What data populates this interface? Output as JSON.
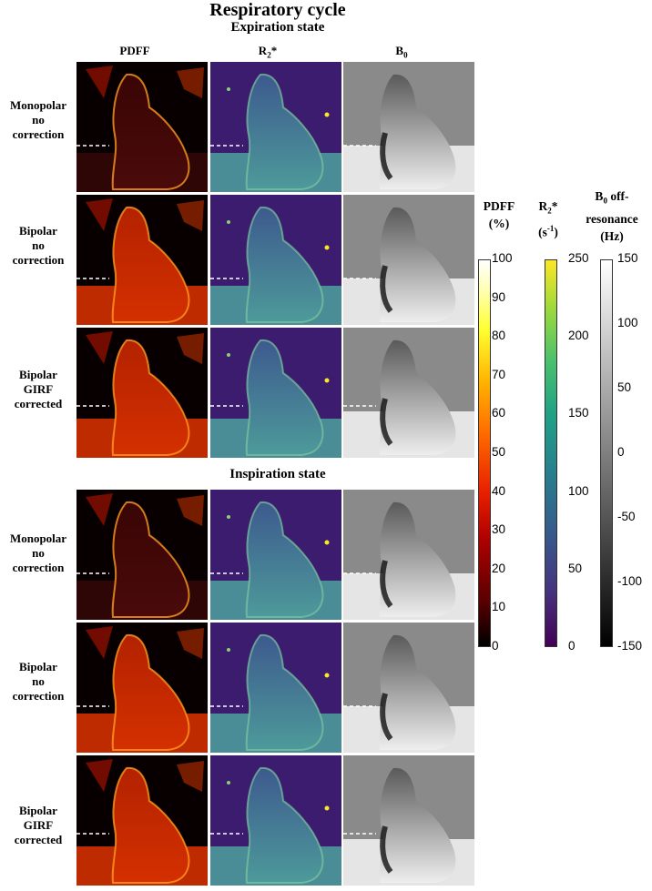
{
  "title": "Respiratory cycle",
  "states": [
    "Expiration state",
    "Inspiration state"
  ],
  "columns": {
    "pdff": "PDFF",
    "r2": "R",
    "r2_sub": "2",
    "r2_star": "*",
    "b0": "B",
    "b0_sub": "0"
  },
  "rows": [
    [
      "Monopolar",
      "no",
      "correction"
    ],
    [
      "Bipolar",
      "no",
      "correction"
    ],
    [
      "Bipolar",
      "GIRF",
      "corrected"
    ],
    [
      "Monopolar",
      "no",
      "correction"
    ],
    [
      "Bipolar",
      "no",
      "correction"
    ],
    [
      "Bipolar",
      "GIRF",
      "corrected"
    ]
  ],
  "colorbars": {
    "pdff": {
      "title1": "PDFF",
      "title2": "(%)",
      "ticks": [
        "100",
        "90",
        "80",
        "70",
        "60",
        "50",
        "40",
        "30",
        "20",
        "10",
        "0"
      ],
      "colormap": "hot",
      "range": [
        0,
        100
      ]
    },
    "r2": {
      "title_r": "R",
      "title_sub": "2",
      "title_star": "*",
      "unit_open": "(s",
      "unit_sup": "-1",
      "unit_close": ")",
      "ticks": [
        "250",
        "200",
        "150",
        "100",
        "50",
        "0"
      ],
      "colormap": "viridis",
      "range": [
        0,
        250
      ]
    },
    "b0": {
      "title1": "B",
      "title_sub": "0",
      "title1b": " off-",
      "title2": "resonance",
      "title3": "(Hz)",
      "ticks": [
        "150",
        "100",
        "50",
        "0",
        "-50",
        "-100",
        "-150"
      ],
      "colormap": "gray",
      "range": [
        -150,
        150
      ]
    }
  }
}
